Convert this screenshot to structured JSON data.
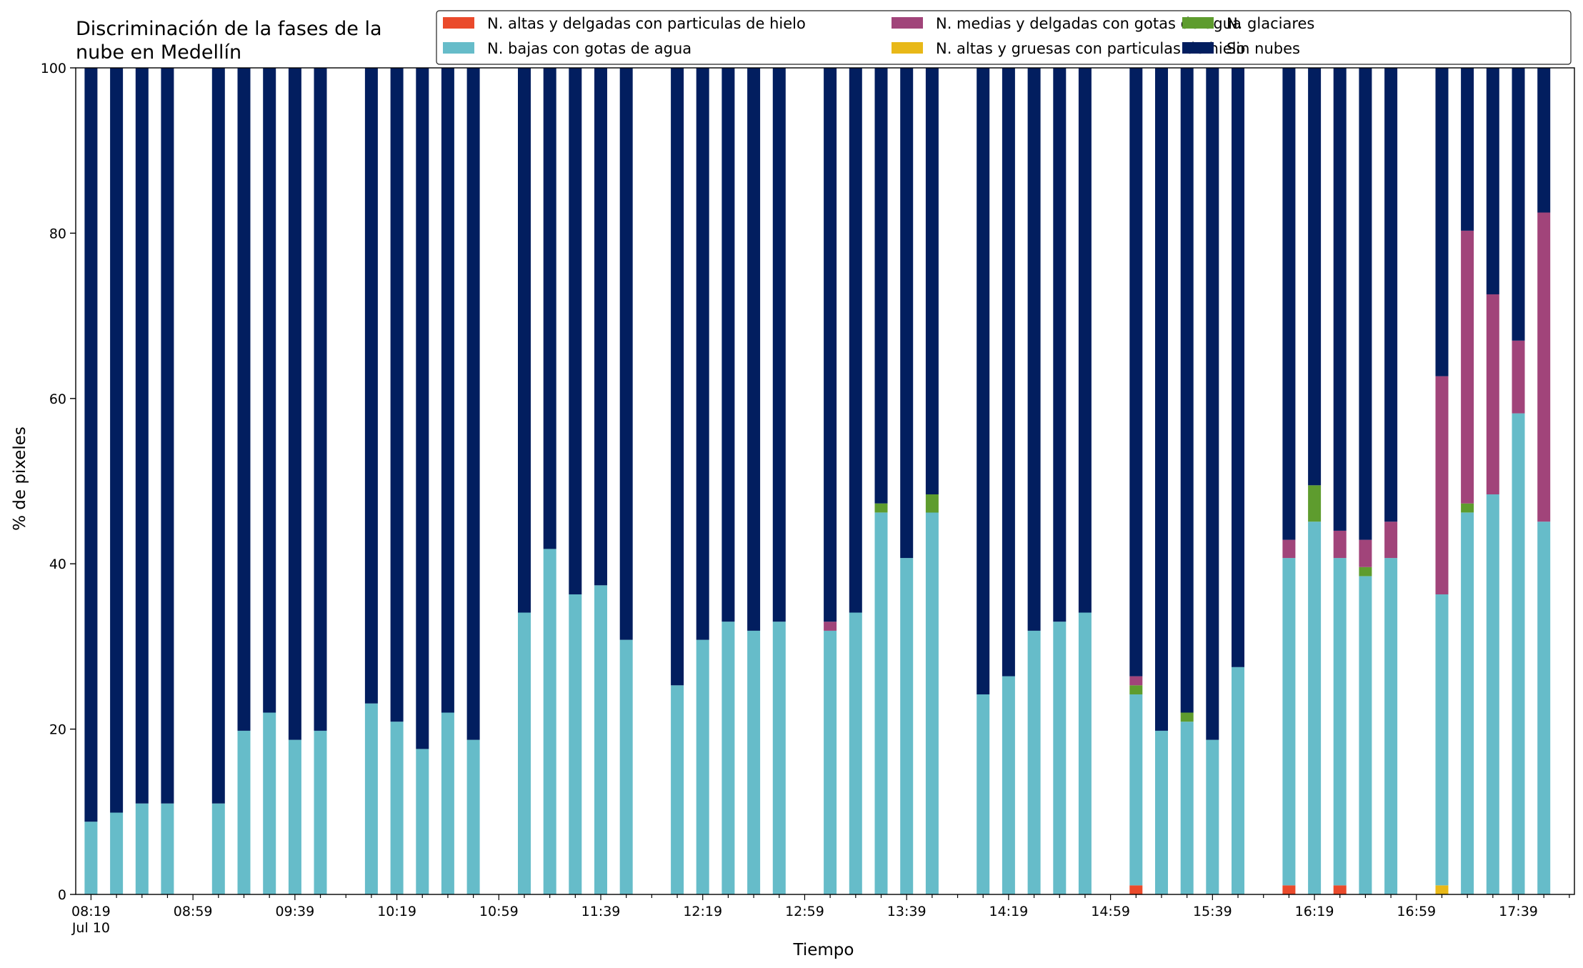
{
  "chart_data": {
    "type": "bar",
    "stacked": true,
    "title": "Discriminación de la fases de la\nnube en Medellín",
    "xlabel": "Tiempo",
    "ylabel": "% de pixeles",
    "ylim": [
      0,
      100
    ],
    "yticks": [
      0,
      20,
      40,
      60,
      80,
      100
    ],
    "xlim": [
      "08:13",
      "18:01"
    ],
    "xticks_major": [
      {
        "t": "08:19",
        "label": "08:19",
        "sublabel": "Jul 10"
      },
      {
        "t": "08:59",
        "label": "08:59"
      },
      {
        "t": "09:39",
        "label": "09:39"
      },
      {
        "t": "10:19",
        "label": "10:19"
      },
      {
        "t": "10:59",
        "label": "10:59"
      },
      {
        "t": "11:39",
        "label": "11:39"
      },
      {
        "t": "12:19",
        "label": "12:19"
      },
      {
        "t": "12:59",
        "label": "12:59"
      },
      {
        "t": "13:39",
        "label": "13:39"
      },
      {
        "t": "14:19",
        "label": "14:19"
      },
      {
        "t": "14:59",
        "label": "14:59"
      },
      {
        "t": "15:39",
        "label": "15:39"
      },
      {
        "t": "16:19",
        "label": "16:19"
      },
      {
        "t": "16:59",
        "label": "16:59"
      },
      {
        "t": "17:39",
        "label": "17:39"
      }
    ],
    "grid": false,
    "legend_position": "top-right",
    "legend_order": [
      "altas_delgadas",
      "bajas_agua",
      "medias_agua",
      "altas_gruesas",
      "glaciares",
      "sin_nubes"
    ],
    "series": [
      {
        "key": "altas_delgadas",
        "name": "N. altas y delgadas con particulas de hielo",
        "color": "#ea4a2b"
      },
      {
        "key": "altas_gruesas",
        "name": "N. altas y gruesas con particulas de hielo",
        "color": "#e8b818"
      },
      {
        "key": "bajas_agua",
        "name": "N. bajas con gotas de agua",
        "color": "#66bcc9"
      },
      {
        "key": "glaciares",
        "name": "N. glaciares",
        "color": "#5e9c2e"
      },
      {
        "key": "medias_agua",
        "name": "N. medias y delgadas con gotas de agua",
        "color": "#a1447a"
      },
      {
        "key": "sin_nubes",
        "name": "Sin nubes",
        "color": "#021e5f"
      }
    ],
    "stack_order": [
      "altas_delgadas",
      "altas_gruesas",
      "bajas_agua",
      "glaciares",
      "medias_agua",
      "sin_nubes"
    ],
    "bars": [
      {
        "t": "08:19",
        "altas_delgadas": 0,
        "altas_gruesas": 0,
        "bajas_agua": 8.8,
        "glaciares": 0,
        "medias_agua": 0,
        "sin_nubes": 91.2
      },
      {
        "t": "08:29",
        "altas_delgadas": 0,
        "altas_gruesas": 0,
        "bajas_agua": 9.9,
        "glaciares": 0,
        "medias_agua": 0,
        "sin_nubes": 90.1
      },
      {
        "t": "08:39",
        "altas_delgadas": 0,
        "altas_gruesas": 0,
        "bajas_agua": 11.0,
        "glaciares": 0,
        "medias_agua": 0,
        "sin_nubes": 89.0
      },
      {
        "t": "08:49",
        "altas_delgadas": 0,
        "altas_gruesas": 0,
        "bajas_agua": 11.0,
        "glaciares": 0,
        "medias_agua": 0,
        "sin_nubes": 89.0
      },
      {
        "t": "09:09",
        "altas_delgadas": 0,
        "altas_gruesas": 0,
        "bajas_agua": 11.0,
        "glaciares": 0,
        "medias_agua": 0,
        "sin_nubes": 89.0
      },
      {
        "t": "09:19",
        "altas_delgadas": 0,
        "altas_gruesas": 0,
        "bajas_agua": 19.8,
        "glaciares": 0,
        "medias_agua": 0,
        "sin_nubes": 80.2
      },
      {
        "t": "09:29",
        "altas_delgadas": 0,
        "altas_gruesas": 0,
        "bajas_agua": 22.0,
        "glaciares": 0,
        "medias_agua": 0,
        "sin_nubes": 78.0
      },
      {
        "t": "09:39",
        "altas_delgadas": 0,
        "altas_gruesas": 0,
        "bajas_agua": 18.7,
        "glaciares": 0,
        "medias_agua": 0,
        "sin_nubes": 81.3
      },
      {
        "t": "09:49",
        "altas_delgadas": 0,
        "altas_gruesas": 0,
        "bajas_agua": 19.8,
        "glaciares": 0,
        "medias_agua": 0,
        "sin_nubes": 80.2
      },
      {
        "t": "10:09",
        "altas_delgadas": 0,
        "altas_gruesas": 0,
        "bajas_agua": 23.1,
        "glaciares": 0,
        "medias_agua": 0,
        "sin_nubes": 76.9
      },
      {
        "t": "10:19",
        "altas_delgadas": 0,
        "altas_gruesas": 0,
        "bajas_agua": 20.9,
        "glaciares": 0,
        "medias_agua": 0,
        "sin_nubes": 79.1
      },
      {
        "t": "10:29",
        "altas_delgadas": 0,
        "altas_gruesas": 0,
        "bajas_agua": 17.6,
        "glaciares": 0,
        "medias_agua": 0,
        "sin_nubes": 82.4
      },
      {
        "t": "10:39",
        "altas_delgadas": 0,
        "altas_gruesas": 0,
        "bajas_agua": 22.0,
        "glaciares": 0,
        "medias_agua": 0,
        "sin_nubes": 78.0
      },
      {
        "t": "10:49",
        "altas_delgadas": 0,
        "altas_gruesas": 0,
        "bajas_agua": 18.7,
        "glaciares": 0,
        "medias_agua": 0,
        "sin_nubes": 81.3
      },
      {
        "t": "11:09",
        "altas_delgadas": 0,
        "altas_gruesas": 0,
        "bajas_agua": 34.1,
        "glaciares": 0,
        "medias_agua": 0,
        "sin_nubes": 65.9
      },
      {
        "t": "11:19",
        "altas_delgadas": 0,
        "altas_gruesas": 0,
        "bajas_agua": 41.8,
        "glaciares": 0,
        "medias_agua": 0,
        "sin_nubes": 58.2
      },
      {
        "t": "11:29",
        "altas_delgadas": 0,
        "altas_gruesas": 0,
        "bajas_agua": 36.3,
        "glaciares": 0,
        "medias_agua": 0,
        "sin_nubes": 63.7
      },
      {
        "t": "11:39",
        "altas_delgadas": 0,
        "altas_gruesas": 0,
        "bajas_agua": 37.4,
        "glaciares": 0,
        "medias_agua": 0,
        "sin_nubes": 62.6
      },
      {
        "t": "11:49",
        "altas_delgadas": 0,
        "altas_gruesas": 0,
        "bajas_agua": 30.8,
        "glaciares": 0,
        "medias_agua": 0,
        "sin_nubes": 69.2
      },
      {
        "t": "12:09",
        "altas_delgadas": 0,
        "altas_gruesas": 0,
        "bajas_agua": 25.3,
        "glaciares": 0,
        "medias_agua": 0,
        "sin_nubes": 74.7
      },
      {
        "t": "12:19",
        "altas_delgadas": 0,
        "altas_gruesas": 0,
        "bajas_agua": 30.8,
        "glaciares": 0,
        "medias_agua": 0,
        "sin_nubes": 69.2
      },
      {
        "t": "12:29",
        "altas_delgadas": 0,
        "altas_gruesas": 0,
        "bajas_agua": 33.0,
        "glaciares": 0,
        "medias_agua": 0,
        "sin_nubes": 67.0
      },
      {
        "t": "12:39",
        "altas_delgadas": 0,
        "altas_gruesas": 0,
        "bajas_agua": 31.9,
        "glaciares": 0,
        "medias_agua": 0,
        "sin_nubes": 68.1
      },
      {
        "t": "12:49",
        "altas_delgadas": 0,
        "altas_gruesas": 0,
        "bajas_agua": 33.0,
        "glaciares": 0,
        "medias_agua": 0,
        "sin_nubes": 67.0
      },
      {
        "t": "13:09",
        "altas_delgadas": 0,
        "altas_gruesas": 0,
        "bajas_agua": 31.9,
        "glaciares": 0,
        "medias_agua": 1.1,
        "sin_nubes": 67.0
      },
      {
        "t": "13:19",
        "altas_delgadas": 0,
        "altas_gruesas": 0,
        "bajas_agua": 34.1,
        "glaciares": 0,
        "medias_agua": 0,
        "sin_nubes": 65.9
      },
      {
        "t": "13:29",
        "altas_delgadas": 0,
        "altas_gruesas": 0,
        "bajas_agua": 46.2,
        "glaciares": 1.1,
        "medias_agua": 0,
        "sin_nubes": 52.7
      },
      {
        "t": "13:39",
        "altas_delgadas": 0,
        "altas_gruesas": 0,
        "bajas_agua": 40.7,
        "glaciares": 0,
        "medias_agua": 0,
        "sin_nubes": 59.3
      },
      {
        "t": "13:49",
        "altas_delgadas": 0,
        "altas_gruesas": 0,
        "bajas_agua": 46.2,
        "glaciares": 2.2,
        "medias_agua": 0,
        "sin_nubes": 51.6
      },
      {
        "t": "14:09",
        "altas_delgadas": 0,
        "altas_gruesas": 0,
        "bajas_agua": 24.2,
        "glaciares": 0,
        "medias_agua": 0,
        "sin_nubes": 75.8
      },
      {
        "t": "14:19",
        "altas_delgadas": 0,
        "altas_gruesas": 0,
        "bajas_agua": 26.4,
        "glaciares": 0,
        "medias_agua": 0,
        "sin_nubes": 73.6
      },
      {
        "t": "14:29",
        "altas_delgadas": 0,
        "altas_gruesas": 0,
        "bajas_agua": 31.9,
        "glaciares": 0,
        "medias_agua": 0,
        "sin_nubes": 68.1
      },
      {
        "t": "14:39",
        "altas_delgadas": 0,
        "altas_gruesas": 0,
        "bajas_agua": 33.0,
        "glaciares": 0,
        "medias_agua": 0,
        "sin_nubes": 67.0
      },
      {
        "t": "14:49",
        "altas_delgadas": 0,
        "altas_gruesas": 0,
        "bajas_agua": 34.1,
        "glaciares": 0,
        "medias_agua": 0,
        "sin_nubes": 65.9
      },
      {
        "t": "15:09",
        "altas_delgadas": 1.1,
        "altas_gruesas": 0,
        "bajas_agua": 23.1,
        "glaciares": 1.1,
        "medias_agua": 1.1,
        "sin_nubes": 73.6
      },
      {
        "t": "15:19",
        "altas_delgadas": 0,
        "altas_gruesas": 0,
        "bajas_agua": 19.8,
        "glaciares": 0,
        "medias_agua": 0,
        "sin_nubes": 80.2
      },
      {
        "t": "15:29",
        "altas_delgadas": 0,
        "altas_gruesas": 0,
        "bajas_agua": 20.9,
        "glaciares": 1.1,
        "medias_agua": 0,
        "sin_nubes": 78.0
      },
      {
        "t": "15:39",
        "altas_delgadas": 0,
        "altas_gruesas": 0,
        "bajas_agua": 18.7,
        "glaciares": 0,
        "medias_agua": 0,
        "sin_nubes": 81.3
      },
      {
        "t": "15:49",
        "altas_delgadas": 0,
        "altas_gruesas": 0,
        "bajas_agua": 27.5,
        "glaciares": 0,
        "medias_agua": 0,
        "sin_nubes": 72.5
      },
      {
        "t": "16:09",
        "altas_delgadas": 1.1,
        "altas_gruesas": 0,
        "bajas_agua": 39.6,
        "glaciares": 0,
        "medias_agua": 2.2,
        "sin_nubes": 57.1
      },
      {
        "t": "16:19",
        "altas_delgadas": 0,
        "altas_gruesas": 0,
        "bajas_agua": 45.1,
        "glaciares": 4.4,
        "medias_agua": 0,
        "sin_nubes": 50.5
      },
      {
        "t": "16:29",
        "altas_delgadas": 1.1,
        "altas_gruesas": 0,
        "bajas_agua": 39.6,
        "glaciares": 0,
        "medias_agua": 3.3,
        "sin_nubes": 56.0
      },
      {
        "t": "16:39",
        "altas_delgadas": 0,
        "altas_gruesas": 0,
        "bajas_agua": 38.5,
        "glaciares": 1.1,
        "medias_agua": 3.3,
        "sin_nubes": 57.1
      },
      {
        "t": "16:49",
        "altas_delgadas": 0,
        "altas_gruesas": 0,
        "bajas_agua": 40.7,
        "glaciares": 0,
        "medias_agua": 4.4,
        "sin_nubes": 54.9
      },
      {
        "t": "17:09",
        "altas_delgadas": 0,
        "altas_gruesas": 1.1,
        "bajas_agua": 35.2,
        "glaciares": 0,
        "medias_agua": 26.4,
        "sin_nubes": 37.3
      },
      {
        "t": "17:19",
        "altas_delgadas": 0,
        "altas_gruesas": 0,
        "bajas_agua": 46.2,
        "glaciares": 1.1,
        "medias_agua": 33.0,
        "sin_nubes": 19.7
      },
      {
        "t": "17:29",
        "altas_delgadas": 0,
        "altas_gruesas": 0,
        "bajas_agua": 48.4,
        "glaciares": 0,
        "medias_agua": 24.2,
        "sin_nubes": 27.4
      },
      {
        "t": "17:39",
        "altas_delgadas": 0,
        "altas_gruesas": 0,
        "bajas_agua": 58.2,
        "glaciares": 0,
        "medias_agua": 8.8,
        "sin_nubes": 33.0
      },
      {
        "t": "17:49",
        "altas_delgadas": 0,
        "altas_gruesas": 0,
        "bajas_agua": 45.1,
        "glaciares": 0,
        "medias_agua": 37.4,
        "sin_nubes": 17.5
      }
    ]
  }
}
